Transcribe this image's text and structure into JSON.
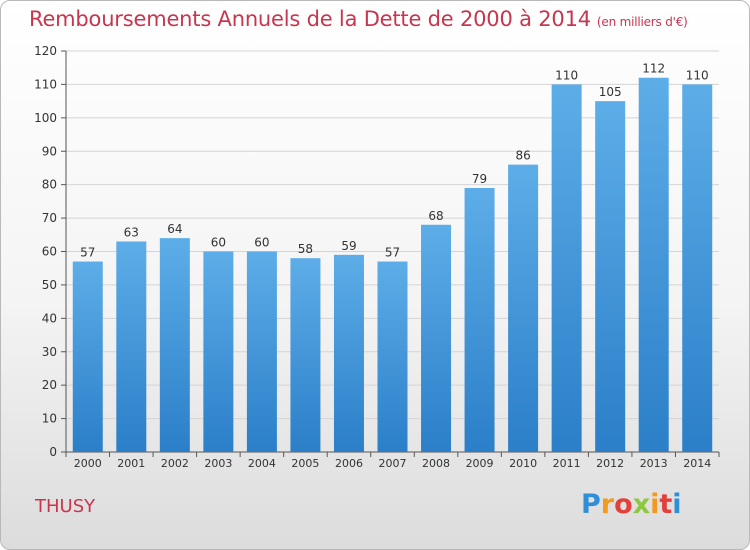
{
  "title": "Remboursements Annuels de la Dette de 2000 à 2014",
  "unit": "(en milliers d'€)",
  "commune": "THUSY",
  "logo": {
    "letters": [
      "P",
      "r",
      "o",
      "x",
      "i",
      "t",
      "i"
    ],
    "colors": [
      "#2f8fd6",
      "#f39a1d",
      "#e2403a",
      "#8dc63f",
      "#f39a1d",
      "#e2403a",
      "#2f8fd6"
    ]
  },
  "colors": {
    "bar_light": "#5dade8",
    "bar_dark": "#2b7fc8",
    "title": "#c8364e"
  },
  "chart_data": {
    "type": "bar",
    "categories": [
      "2000",
      "2001",
      "2002",
      "2003",
      "2004",
      "2005",
      "2006",
      "2007",
      "2008",
      "2009",
      "2010",
      "2011",
      "2012",
      "2013",
      "2014"
    ],
    "values": [
      57,
      63,
      64,
      60,
      60,
      58,
      59,
      57,
      68,
      79,
      86,
      110,
      105,
      112,
      110
    ],
    "ylim": [
      0,
      120
    ],
    "yticks": [
      0,
      10,
      20,
      30,
      40,
      50,
      60,
      70,
      80,
      90,
      100,
      110,
      120
    ],
    "grid": true
  }
}
